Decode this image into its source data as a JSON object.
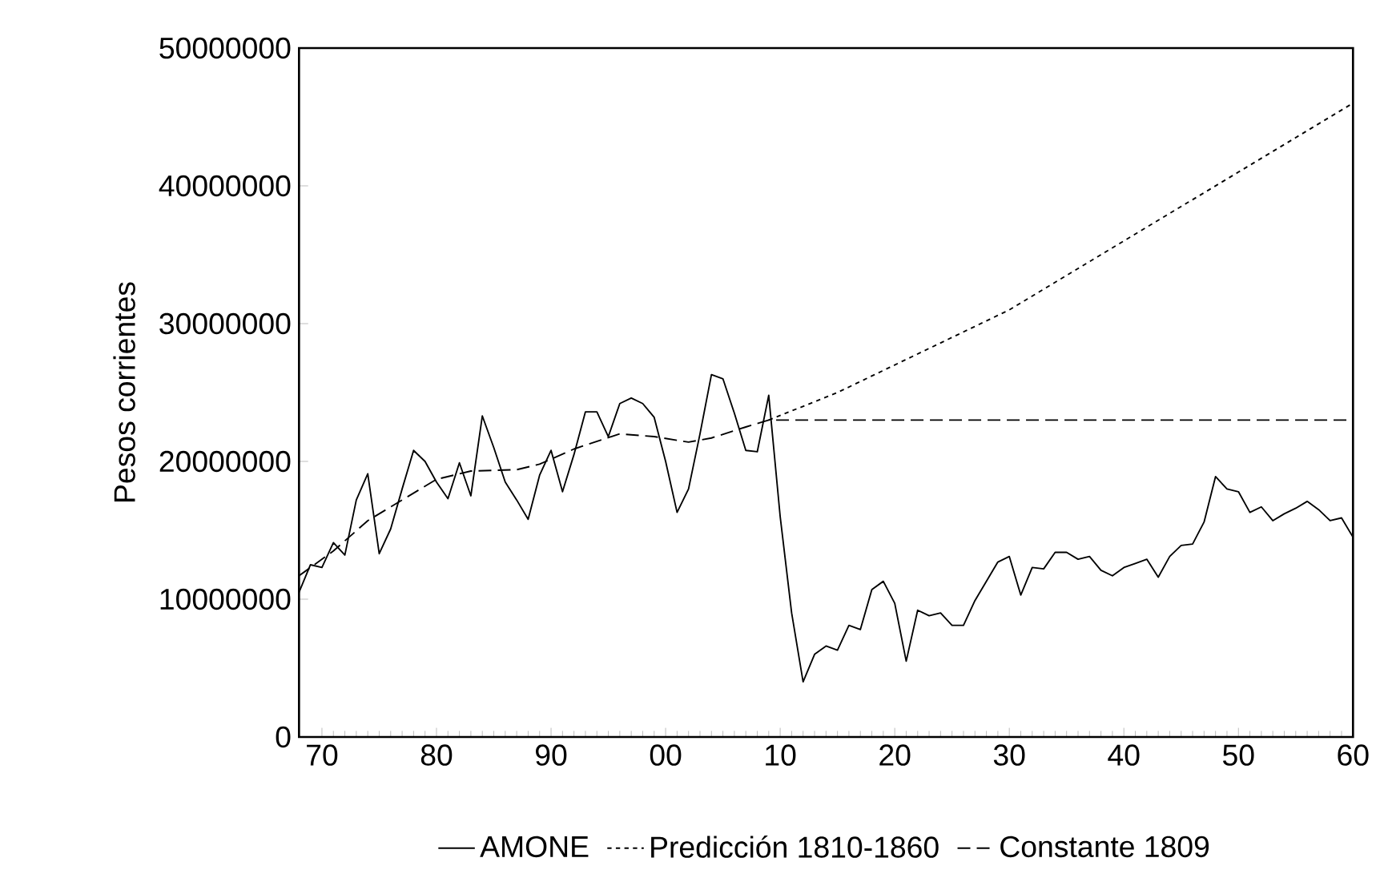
{
  "chart_data": {
    "type": "line",
    "ylabel": "Pesos corrientes",
    "xlim": [
      "1768",
      "1860"
    ],
    "ylim": [
      0,
      50000000
    ],
    "xticks": [
      {
        "value": "1770",
        "label": "70"
      },
      {
        "value": "1780",
        "label": "80"
      },
      {
        "value": "1790",
        "label": "90"
      },
      {
        "value": "1800",
        "label": "00"
      },
      {
        "value": "1810",
        "label": "10"
      },
      {
        "value": "1820",
        "label": "20"
      },
      {
        "value": "1830",
        "label": "30"
      },
      {
        "value": "1840",
        "label": "40"
      },
      {
        "value": "1850",
        "label": "50"
      },
      {
        "value": "1860",
        "label": "60"
      }
    ],
    "yticks": [
      0,
      10000000,
      20000000,
      30000000,
      40000000,
      50000000
    ],
    "grid": false,
    "legend": "bottom",
    "marker": "none",
    "series": [
      {
        "name": "AMONE",
        "color": "#000000",
        "line_style": "solid",
        "x": [
          "1768",
          "1769",
          "1770",
          "1771",
          "1772",
          "1773",
          "1774",
          "1775",
          "1776",
          "1777",
          "1778",
          "1779",
          "1780",
          "1781",
          "1782",
          "1783",
          "1784",
          "1785",
          "1786",
          "1787",
          "1788",
          "1789",
          "1790",
          "1791",
          "1792",
          "1793",
          "1794",
          "1795",
          "1796",
          "1797",
          "1798",
          "1799",
          "1800",
          "1801",
          "1802",
          "1803",
          "1804",
          "1805",
          "1806",
          "1807",
          "1808",
          "1809",
          "1810",
          "1811",
          "1812",
          "1813",
          "1814",
          "1815",
          "1816",
          "1817",
          "1818",
          "1819",
          "1820",
          "1821",
          "1822",
          "1823",
          "1824",
          "1825",
          "1826",
          "1827",
          "1828",
          "1829",
          "1830",
          "1831",
          "1832",
          "1833",
          "1834",
          "1835",
          "1836",
          "1837",
          "1838",
          "1839",
          "1840",
          "1841",
          "1842",
          "1843",
          "1844",
          "1845",
          "1846",
          "1847",
          "1848",
          "1849",
          "1850",
          "1851",
          "1852",
          "1853",
          "1854",
          "1855",
          "1856",
          "1857",
          "1858",
          "1859",
          "1860"
        ],
        "values": [
          10500000,
          12500000,
          12300000,
          14100000,
          13200000,
          17200000,
          19100000,
          13300000,
          15100000,
          18000000,
          20800000,
          20000000,
          18500000,
          17300000,
          19900000,
          17500000,
          23300000,
          21000000,
          18500000,
          17200000,
          15800000,
          19000000,
          20800000,
          17800000,
          20500000,
          23600000,
          23600000,
          21800000,
          24200000,
          24600000,
          24200000,
          23200000,
          20000000,
          16300000,
          18000000,
          22000000,
          26300000,
          26000000,
          23500000,
          20800000,
          20700000,
          24800000,
          16000000,
          9000000,
          4000000,
          6000000,
          6600000,
          6300000,
          8100000,
          7800000,
          10700000,
          11300000,
          9700000,
          5500000,
          9200000,
          8800000,
          9000000,
          8100000,
          8100000,
          9900000,
          11300000,
          12700000,
          13100000,
          10300000,
          12300000,
          12200000,
          13400000,
          13400000,
          12900000,
          13100000,
          12100000,
          11700000,
          12300000,
          12600000,
          12900000,
          11600000,
          13100000,
          13900000,
          14000000,
          15600000,
          18900000,
          18000000,
          17800000,
          16300000,
          16700000,
          15700000,
          16200000,
          16600000,
          17100000,
          16500000,
          15700000,
          15900000,
          14500000
        ]
      },
      {
        "name": "Predicción 1810-1860",
        "color": "#000000",
        "line_style": "dotted",
        "x": [
          "1809",
          "1815",
          "1820",
          "1825",
          "1830",
          "1835",
          "1840",
          "1845",
          "1850",
          "1855",
          "1860"
        ],
        "values": [
          23000000,
          25000000,
          27000000,
          29000000,
          31000000,
          33500000,
          36000000,
          38500000,
          41000000,
          43500000,
          46000000
        ]
      },
      {
        "name": "Constante 1809",
        "color": "#000000",
        "line_style": "dashed",
        "x": [
          "1768",
          "1771",
          "1774",
          "1777",
          "1780",
          "1783",
          "1787",
          "1789",
          "1792",
          "1796",
          "1799",
          "1802",
          "1804",
          "1807",
          "1809",
          "1820",
          "1830",
          "1840",
          "1850",
          "1860"
        ],
        "values": [
          11700000,
          13500000,
          15700000,
          17200000,
          18700000,
          19300000,
          19400000,
          19800000,
          20900000,
          22000000,
          21800000,
          21400000,
          21700000,
          22500000,
          23000000,
          23000000,
          23000000,
          23000000,
          23000000,
          23000000
        ]
      }
    ]
  }
}
